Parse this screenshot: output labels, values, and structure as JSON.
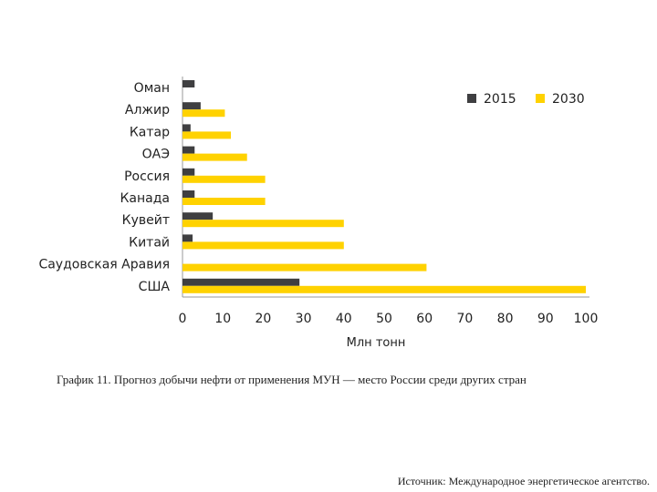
{
  "chart_data": {
    "type": "bar",
    "orientation": "horizontal",
    "title": "",
    "xlabel": "Млн тонн",
    "ylabel": "",
    "xlim": [
      0,
      100
    ],
    "xticks": [
      0,
      10,
      20,
      30,
      40,
      50,
      60,
      70,
      80,
      90,
      100
    ],
    "grid": false,
    "legend_position": "top-right",
    "categories": [
      "Оман",
      "Алжир",
      "Катар",
      "ОАЭ",
      "Россия",
      "Канада",
      "Кувейт",
      "Китай",
      "Саудовская Аравия",
      "США"
    ],
    "series": [
      {
        "name": "2015",
        "color": "#3f3f41",
        "values": [
          3,
          4.5,
          2,
          3,
          3,
          3,
          7.5,
          2.5,
          0,
          29
        ]
      },
      {
        "name": "2030",
        "color": "#ffd200",
        "values": [
          0,
          10.5,
          12,
          16,
          20.5,
          20.5,
          40,
          40,
          60.5,
          100
        ]
      }
    ]
  },
  "caption": "График 11. Прогноз добычи нефти от применения МУН — место России среди других стран",
  "source": "Источник: Международное энергетическое агентство."
}
